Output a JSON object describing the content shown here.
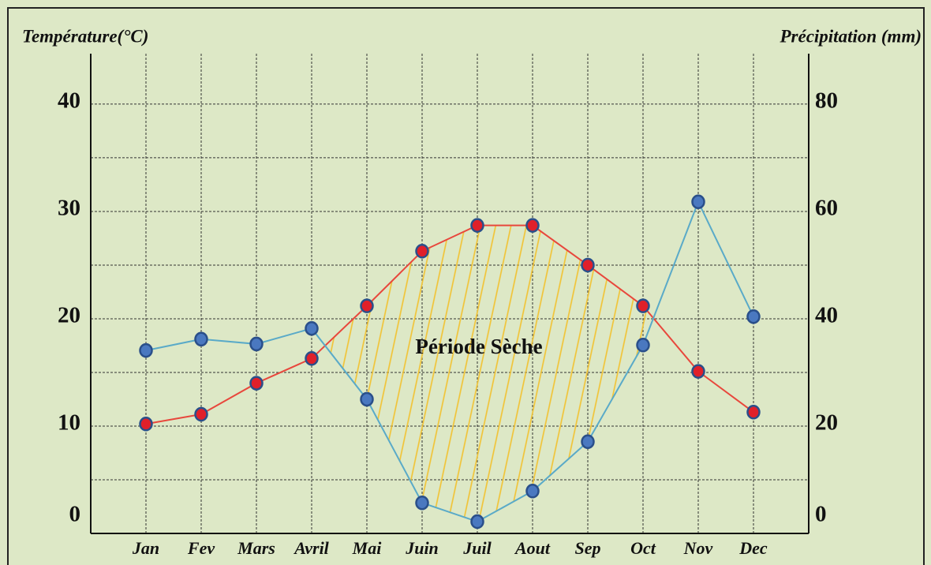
{
  "chart_data": {
    "type": "line",
    "y_label": "Température(°C)",
    "y2_label": "Précipitation (mm)",
    "annotation": "Période Sèche",
    "categories": [
      "Jan",
      "Fev",
      "Mars",
      "Avril",
      "Mai",
      "Juin",
      "Juil",
      "Aout",
      "Sep",
      "Oct",
      "Nov",
      "Dec"
    ],
    "series": [
      {
        "color": "#e8473c",
        "marker_color": "#e0202a",
        "axis": "y",
        "values": [
          10.2,
          11.1,
          14.0,
          16.3,
          21.2,
          26.3,
          28.7,
          28.7,
          25.0,
          21.2,
          15.1,
          11.3
        ]
      },
      {
        "color": "#5aaac8",
        "marker_color": "#4a78c0",
        "axis": "y2",
        "values": [
          34.1,
          36.2,
          35.3,
          38.2,
          25.0,
          5.7,
          2.2,
          7.9,
          17.1,
          35.1,
          61.8,
          40.4
        ]
      }
    ],
    "ylim": [
      0,
      44.7
    ],
    "yticks": [
      0,
      10,
      20,
      30,
      40
    ],
    "yminor": [
      5,
      15,
      25,
      35
    ],
    "y2lim": [
      0,
      89.4
    ],
    "y2ticks": [
      0,
      20,
      40,
      60,
      80
    ],
    "hatch_color": "#f2c230",
    "grid": true
  }
}
